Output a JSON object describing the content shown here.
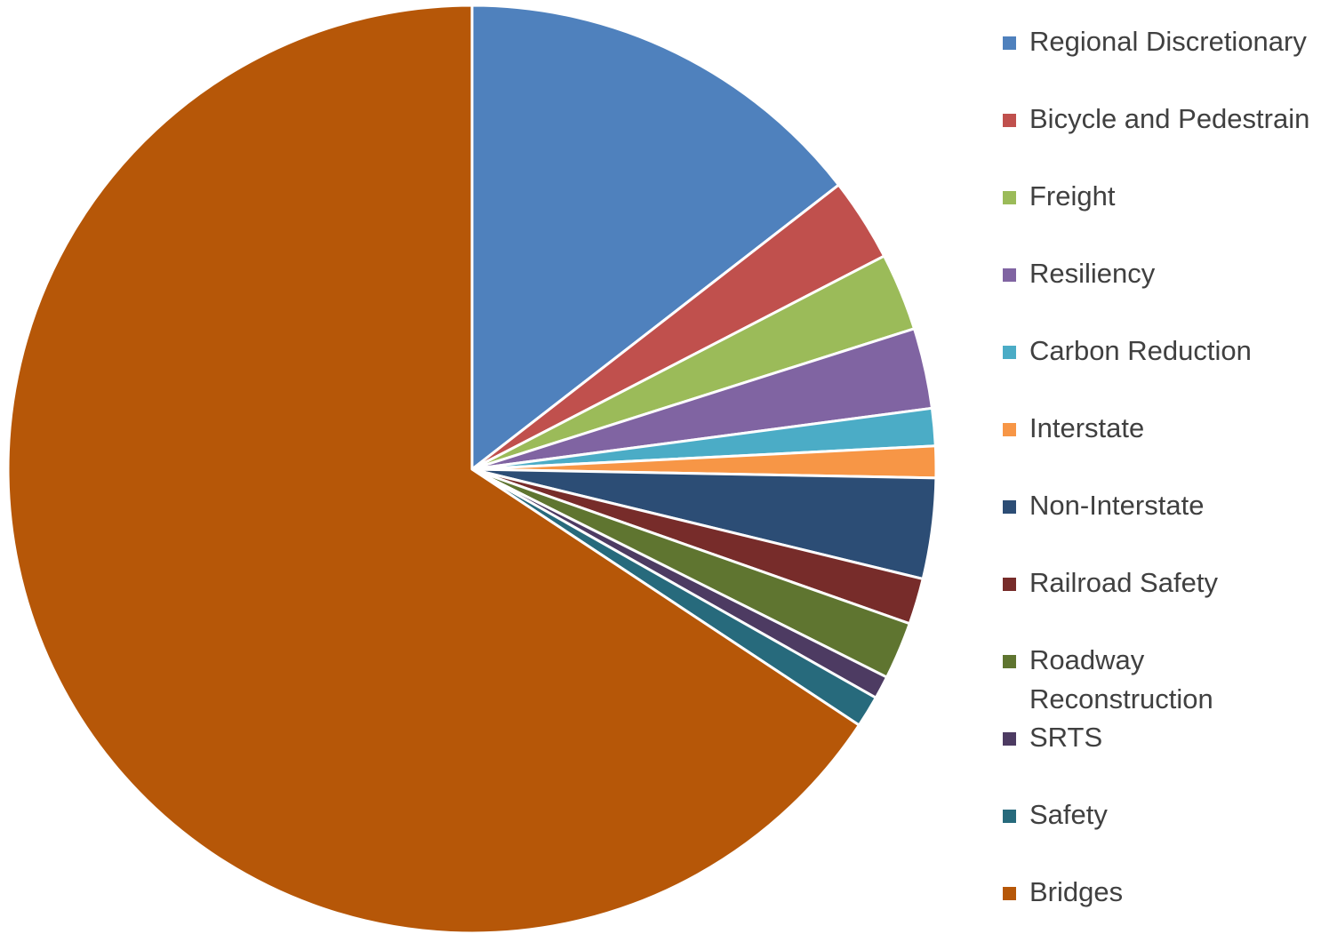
{
  "chart_data": {
    "type": "pie",
    "title": "",
    "legend_position": "right",
    "slices": [
      {
        "label": "Regional Discretionary",
        "value": 14.5,
        "color": "#4f81bd"
      },
      {
        "label": "Bicycle and Pedestrain",
        "value": 2.9,
        "color": "#c0504d"
      },
      {
        "label": "Freight",
        "value": 2.7,
        "color": "#9bbb59"
      },
      {
        "label": "Resiliency",
        "value": 2.8,
        "color": "#8064a2"
      },
      {
        "label": "Carbon Reduction",
        "value": 1.3,
        "color": "#4bacc6"
      },
      {
        "label": "Interstate",
        "value": 1.1,
        "color": "#f79646"
      },
      {
        "label": "Non-Interstate",
        "value": 3.5,
        "color": "#2c4d75"
      },
      {
        "label": "Railroad Safety",
        "value": 1.6,
        "color": "#772c2a"
      },
      {
        "label": "Roadway Reconstruction",
        "value": 2.0,
        "color": "#5f7530"
      },
      {
        "label": "SRTS",
        "value": 0.8,
        "color": "#4d3b62"
      },
      {
        "label": "Safety",
        "value": 1.1,
        "color": "#276a7c"
      },
      {
        "label": "Bridges",
        "value": 65.7,
        "color": "#b65708"
      }
    ]
  }
}
